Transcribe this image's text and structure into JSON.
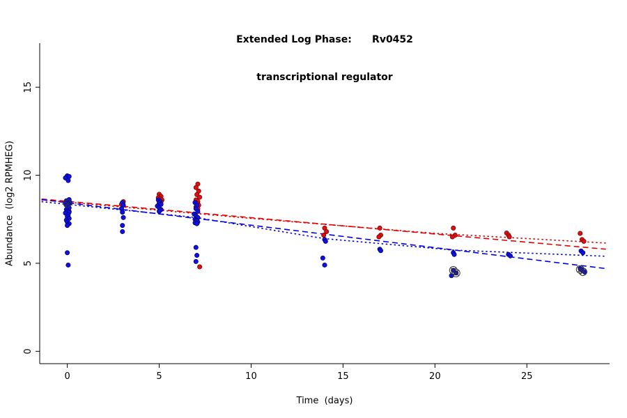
{
  "chart_data": {
    "type": "scatter",
    "title_line1": "Extended Log Phase:      Rv0452",
    "title_line2": "transcriptional regulator",
    "xlabel": "Time  (days)",
    "ylabel": "Abundance  (log2 RPMHEG)",
    "xlim": [
      -1.5,
      29.5
    ],
    "ylim": [
      -0.7,
      17.5
    ],
    "x_ticks": [
      0,
      5,
      10,
      15,
      20,
      25
    ],
    "y_ticks": [
      0,
      5,
      10,
      15
    ],
    "grid": false,
    "legend": "none",
    "colors": {
      "red": "#dd1111",
      "red_edge": "#7a0000",
      "blue": "#1111dd",
      "blue_edge": "#00007a",
      "flag": "#333333",
      "axis": "#000000"
    },
    "series": [
      {
        "name": "red-series",
        "color": "#dd1111",
        "edge": "#7a0000",
        "points": [
          [
            0.05,
            9.9
          ],
          [
            0.0,
            8.45
          ],
          [
            0.1,
            8.4
          ],
          [
            -0.05,
            8.3
          ],
          [
            0.05,
            8.2
          ],
          [
            0.0,
            8.1
          ],
          [
            0.1,
            7.95
          ],
          [
            3.05,
            8.5
          ],
          [
            2.95,
            8.35
          ],
          [
            5.0,
            8.92
          ],
          [
            5.1,
            8.8
          ],
          [
            4.95,
            8.72
          ],
          [
            5.05,
            8.65
          ],
          [
            5.15,
            8.6
          ],
          [
            5.0,
            8.55
          ],
          [
            5.1,
            8.5
          ],
          [
            7.1,
            9.5
          ],
          [
            7.0,
            9.3
          ],
          [
            7.15,
            9.1
          ],
          [
            7.05,
            8.9
          ],
          [
            7.2,
            8.75
          ],
          [
            7.0,
            8.6
          ],
          [
            7.1,
            8.5
          ],
          [
            7.05,
            8.4
          ],
          [
            7.15,
            8.3
          ],
          [
            7.0,
            8.2
          ],
          [
            7.1,
            8.1
          ],
          [
            7.2,
            4.8
          ],
          [
            14.0,
            7.0
          ],
          [
            14.1,
            6.8
          ],
          [
            13.95,
            6.6
          ],
          [
            17.0,
            7.0
          ],
          [
            17.05,
            6.6
          ],
          [
            16.95,
            6.5
          ],
          [
            21.0,
            7.0
          ],
          [
            21.1,
            6.6
          ],
          [
            20.95,
            6.5
          ],
          [
            23.9,
            6.72
          ],
          [
            24.0,
            6.6
          ],
          [
            24.05,
            6.5
          ],
          [
            27.9,
            6.7
          ],
          [
            28.0,
            6.35
          ],
          [
            28.1,
            6.25
          ]
        ]
      },
      {
        "name": "blue-series",
        "color": "#1111dd",
        "edge": "#00007a",
        "points": [
          [
            0.0,
            9.97
          ],
          [
            0.1,
            9.93
          ],
          [
            -0.1,
            9.85
          ],
          [
            0.05,
            9.7
          ],
          [
            0.1,
            8.62
          ],
          [
            -0.05,
            8.55
          ],
          [
            0.0,
            8.5
          ],
          [
            0.15,
            8.45
          ],
          [
            -0.1,
            8.4
          ],
          [
            0.05,
            8.35
          ],
          [
            0.0,
            8.25
          ],
          [
            0.1,
            8.15
          ],
          [
            -0.05,
            8.05
          ],
          [
            0.0,
            7.95
          ],
          [
            0.1,
            7.9
          ],
          [
            -0.1,
            7.85
          ],
          [
            0.05,
            7.75
          ],
          [
            0.0,
            7.65
          ],
          [
            0.1,
            7.55
          ],
          [
            -0.05,
            7.45
          ],
          [
            0.0,
            7.35
          ],
          [
            0.1,
            7.25
          ],
          [
            0.0,
            7.15
          ],
          [
            0.0,
            5.6
          ],
          [
            0.05,
            4.9
          ],
          [
            3.0,
            8.45
          ],
          [
            3.05,
            8.3
          ],
          [
            2.95,
            8.1
          ],
          [
            3.0,
            7.9
          ],
          [
            3.05,
            7.6
          ],
          [
            3.0,
            7.15
          ],
          [
            3.0,
            6.8
          ],
          [
            4.95,
            8.6
          ],
          [
            5.05,
            8.5
          ],
          [
            5.0,
            8.42
          ],
          [
            5.1,
            8.35
          ],
          [
            4.9,
            8.25
          ],
          [
            5.0,
            8.15
          ],
          [
            5.1,
            8.05
          ],
          [
            5.0,
            7.95
          ],
          [
            6.95,
            8.45
          ],
          [
            7.05,
            8.3
          ],
          [
            7.0,
            8.1
          ],
          [
            7.1,
            7.95
          ],
          [
            6.9,
            7.8
          ],
          [
            7.0,
            7.7
          ],
          [
            7.1,
            7.6
          ],
          [
            6.95,
            7.5
          ],
          [
            7.05,
            7.45
          ],
          [
            7.0,
            7.4
          ],
          [
            7.1,
            7.35
          ],
          [
            6.95,
            7.3
          ],
          [
            7.05,
            7.25
          ],
          [
            7.0,
            5.9
          ],
          [
            7.05,
            5.45
          ],
          [
            7.0,
            5.1
          ],
          [
            14.0,
            6.35
          ],
          [
            14.05,
            6.25
          ],
          [
            13.9,
            5.3
          ],
          [
            14.0,
            4.9
          ],
          [
            17.0,
            5.8
          ],
          [
            17.05,
            5.72
          ],
          [
            21.0,
            5.6
          ],
          [
            21.05,
            5.5
          ],
          [
            21.0,
            4.6
          ],
          [
            21.15,
            4.45
          ],
          [
            20.9,
            4.3
          ],
          [
            24.0,
            5.5
          ],
          [
            24.1,
            5.42
          ],
          [
            27.95,
            5.7
          ],
          [
            28.05,
            5.6
          ],
          [
            27.9,
            4.7
          ],
          [
            28.0,
            4.6
          ],
          [
            28.15,
            4.5
          ]
        ]
      }
    ],
    "flagged_points": [
      [
        0.0,
        8.4
      ],
      [
        21.0,
        4.6
      ],
      [
        21.15,
        4.45
      ],
      [
        27.9,
        4.65
      ],
      [
        28.05,
        4.52
      ]
    ],
    "lines": [
      {
        "name": "red-dashed-fit",
        "color": "#e00000",
        "dash": "dashed",
        "points": [
          [
            -1.4,
            8.65
          ],
          [
            29.3,
            5.8
          ]
        ]
      },
      {
        "name": "red-dotted-fit",
        "color": "#e00000",
        "dash": "dotted",
        "points": [
          [
            -1.4,
            8.6
          ],
          [
            10,
            7.55
          ],
          [
            20,
            6.7
          ],
          [
            29.3,
            6.15
          ]
        ]
      },
      {
        "name": "blue-dashed-fit",
        "color": "#0000e0",
        "dash": "dashed",
        "points": [
          [
            -1.4,
            8.62
          ],
          [
            29.3,
            4.7
          ]
        ]
      },
      {
        "name": "blue-dotted-fit",
        "color": "#0000e0",
        "dash": "dotted",
        "points": [
          [
            -1.4,
            8.5
          ],
          [
            7,
            7.6
          ],
          [
            14,
            6.4
          ],
          [
            21,
            5.75
          ],
          [
            29.3,
            5.4
          ]
        ]
      }
    ]
  }
}
